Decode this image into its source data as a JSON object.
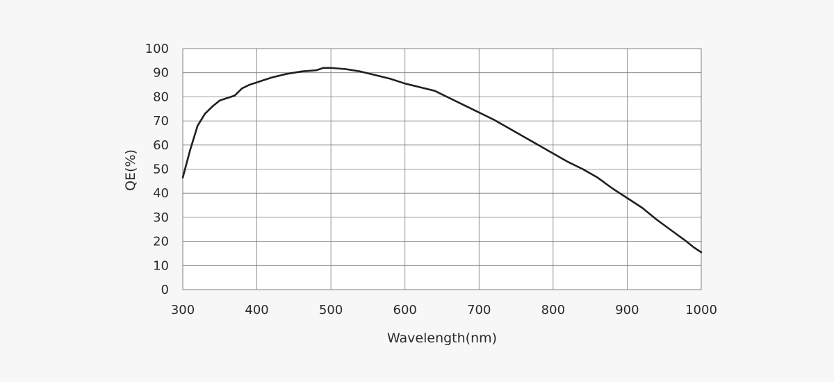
{
  "chart_data": {
    "type": "line",
    "title": "",
    "xlabel": "Wavelength(nm)",
    "ylabel": "QE(%)",
    "xlim": [
      300,
      1000
    ],
    "ylim": [
      0,
      100
    ],
    "x_ticks": [
      300,
      400,
      500,
      600,
      700,
      800,
      900,
      1000
    ],
    "y_ticks": [
      0,
      10,
      20,
      30,
      40,
      50,
      60,
      70,
      80,
      90,
      100
    ],
    "grid": true,
    "series": [
      {
        "x": [
          300,
          310,
          320,
          330,
          340,
          350,
          360,
          370,
          380,
          390,
          400,
          420,
          440,
          460,
          480,
          490,
          500,
          520,
          540,
          560,
          580,
          600,
          620,
          640,
          660,
          680,
          700,
          720,
          740,
          760,
          780,
          800,
          820,
          840,
          860,
          880,
          900,
          920,
          940,
          960,
          980,
          990,
          1000
        ],
        "y": [
          46.5,
          58,
          68,
          73,
          76,
          78.5,
          79.5,
          80.5,
          83.5,
          85,
          86,
          88,
          89.5,
          90.5,
          91,
          92,
          92,
          91.5,
          90.5,
          89,
          87.5,
          85.5,
          84,
          82.5,
          79.5,
          76.5,
          73.5,
          70.5,
          67,
          63.5,
          60,
          56.5,
          53,
          50,
          46.5,
          42,
          38,
          34,
          29,
          24.5,
          20,
          17.5,
          15.5
        ]
      }
    ]
  }
}
